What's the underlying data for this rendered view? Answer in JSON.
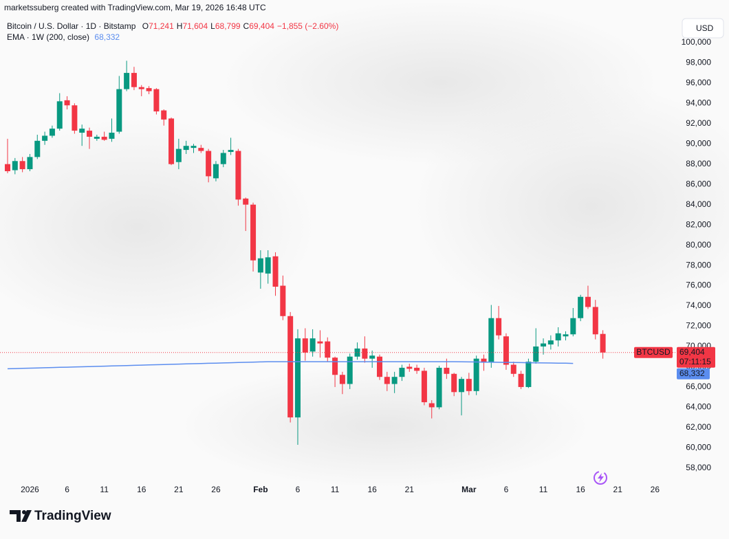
{
  "header": {
    "attribution": "marketssuberg created with TradingView.com, Mar 19, 2026 16:48 UTC"
  },
  "chart_data": {
    "type": "candlestick",
    "title": "Bitcoin / U.S. Dollar · 1D · Bitstamp",
    "legend": [
      {
        "key": "O",
        "value": "71,241"
      },
      {
        "key": "H",
        "value": "71,604"
      },
      {
        "key": "L",
        "value": "68,799"
      },
      {
        "key": "C",
        "value": "69,404"
      }
    ],
    "change": "−1,855 (−2.60%)",
    "currency": "USD",
    "categories": [
      null,
      null,
      null,
      "2026",
      null,
      null,
      null,
      null,
      "6",
      null,
      null,
      null,
      null,
      "11",
      null,
      null,
      null,
      null,
      "16",
      null,
      null,
      null,
      null,
      "21",
      null,
      null,
      null,
      null,
      "26",
      null,
      null,
      null,
      null,
      null,
      "Feb",
      null,
      null,
      null,
      null,
      "6",
      null,
      null,
      null,
      null,
      "11",
      null,
      null,
      null,
      null,
      "16",
      null,
      null,
      null,
      null,
      "21",
      null,
      null,
      null,
      null,
      null,
      null,
      null,
      "Mar",
      null,
      null,
      null,
      null,
      "6",
      null,
      null,
      null,
      null,
      "11",
      null,
      null,
      null,
      null,
      "16",
      null,
      null,
      null,
      null,
      "21",
      null,
      null,
      null,
      null,
      "26",
      null,
      null
    ],
    "open": [
      88000,
      87400,
      88300,
      87500,
      88700,
      90300,
      90800,
      91500,
      94300,
      93800,
      91100,
      91300,
      90500,
      90700,
      90500,
      91200,
      95400,
      97000,
      95600,
      95500,
      95400,
      93300,
      92500,
      88200,
      89400,
      89600,
      89600,
      89300,
      86600,
      88000,
      89200,
      89300,
      84600,
      84000,
      77300,
      77200,
      78900,
      76000,
      73000,
      63000,
      70800,
      69500,
      70500,
      70500,
      68900,
      67200,
      66300,
      69000,
      69800,
      68800,
      69000,
      67000,
      66300,
      67000,
      68000,
      67900,
      67600,
      64400,
      64000,
      67900,
      67300,
      65500,
      66800,
      65600,
      68800,
      68400,
      72800,
      71000,
      68200,
      67300,
      66000,
      68500,
      70000,
      70200,
      70600,
      71000,
      71200,
      72800,
      74900,
      73900,
      71241,
      null,
      null,
      null,
      null,
      null,
      null,
      null,
      null,
      null
    ],
    "high": [
      90500,
      88600,
      88700,
      89000,
      90900,
      91200,
      91800,
      95000,
      94700,
      94000,
      91900,
      91600,
      90900,
      91200,
      92500,
      96700,
      98200,
      97600,
      95800,
      95700,
      95500,
      93400,
      92600,
      90500,
      90300,
      90000,
      89900,
      89500,
      88300,
      89400,
      90600,
      89500,
      84700,
      84200,
      79500,
      79500,
      79300,
      77000,
      73400,
      71700,
      71800,
      71700,
      71600,
      70900,
      69000,
      67500,
      69300,
      70400,
      71000,
      69600,
      69200,
      67500,
      67500,
      68200,
      68300,
      68200,
      67900,
      64700,
      68100,
      68800,
      67400,
      67000,
      67400,
      69100,
      69200,
      74100,
      74000,
      71300,
      68500,
      67600,
      68800,
      71800,
      70800,
      71100,
      71900,
      71500,
      73800,
      75100,
      76000,
      74600,
      71604,
      null,
      null,
      null,
      null,
      null,
      null,
      null,
      null,
      null
    ],
    "low": [
      87100,
      87000,
      87200,
      87300,
      88500,
      89900,
      90600,
      91300,
      93400,
      91000,
      89800,
      89500,
      90300,
      90300,
      90200,
      91000,
      95200,
      95300,
      94700,
      94900,
      92900,
      91800,
      87900,
      87500,
      89000,
      89100,
      89100,
      86200,
      86300,
      87700,
      88900,
      83900,
      81400,
      77400,
      75700,
      76200,
      75000,
      72600,
      62500,
      60300,
      68600,
      69000,
      68900,
      68500,
      66000,
      65300,
      65800,
      68700,
      68400,
      67900,
      66700,
      65600,
      65400,
      66600,
      67500,
      67300,
      64200,
      62900,
      63800,
      66800,
      65100,
      63200,
      65200,
      65200,
      67600,
      67900,
      70700,
      67700,
      67000,
      65800,
      65900,
      68300,
      69200,
      69700,
      70000,
      70600,
      71000,
      72500,
      73700,
      70700,
      68799,
      null,
      null,
      null,
      null,
      null,
      null,
      null,
      null,
      null
    ],
    "close": [
      87300,
      88300,
      87500,
      88700,
      90300,
      90800,
      91500,
      94200,
      93800,
      91300,
      91500,
      90700,
      90700,
      90400,
      91100,
      95400,
      97000,
      95600,
      95400,
      95200,
      93200,
      92400,
      88000,
      89500,
      89800,
      89800,
      89300,
      86800,
      88000,
      89100,
      89400,
      84500,
      84000,
      78500,
      78700,
      78800,
      75900,
      73000,
      63000,
      70800,
      69400,
      70800,
      70300,
      68900,
      67200,
      66300,
      69000,
      69800,
      68800,
      69100,
      67000,
      66300,
      67000,
      67900,
      67800,
      67600,
      64500,
      64000,
      67900,
      67300,
      65500,
      66800,
      65600,
      68800,
      68400,
      72800,
      71100,
      68200,
      67300,
      66000,
      68500,
      70000,
      70300,
      70600,
      71300,
      71200,
      72800,
      74900,
      73900,
      71200,
      69404,
      null,
      null,
      null,
      null,
      null,
      null,
      null,
      null,
      null
    ],
    "up_color": "#089981",
    "down_color": "#f23645",
    "overlay": {
      "name": "EMA · 1W (200, close)",
      "color": "#5b8def",
      "value_label": "68,332",
      "values": [
        67800,
        67820,
        67840,
        67860,
        67880,
        67900,
        67920,
        67940,
        67960,
        67980,
        68000,
        68020,
        68040,
        68060,
        68080,
        68100,
        68120,
        68140,
        68160,
        68180,
        68200,
        68220,
        68240,
        68260,
        68280,
        68300,
        68320,
        68340,
        68360,
        68380,
        68400,
        68420,
        68440,
        68460,
        68480,
        68500,
        68500,
        68500,
        68500,
        68500,
        68500,
        68500,
        68500,
        68500,
        68500,
        68500,
        68500,
        68500,
        68500,
        68500,
        68500,
        68500,
        68500,
        68500,
        68500,
        68500,
        68500,
        68500,
        68500,
        68500,
        68500,
        68490,
        68480,
        68470,
        68460,
        68450,
        68440,
        68430,
        68420,
        68410,
        68400,
        68390,
        68380,
        68370,
        68360,
        68350,
        68332,
        null,
        null,
        null,
        null,
        null,
        null,
        null,
        null,
        null,
        null,
        null,
        null,
        null
      ]
    },
    "price_tag": {
      "symbol": "BTCUSD",
      "price": "69,404",
      "countdown": "07:11:15"
    },
    "ylim": [
      56700,
      102500
    ],
    "yticks": [
      {
        "value": 58000,
        "label": "58,000"
      },
      {
        "value": 60000,
        "label": "60,000"
      },
      {
        "value": 62000,
        "label": "62,000"
      },
      {
        "value": 64000,
        "label": "64,000"
      },
      {
        "value": 66000,
        "label": "66,000"
      },
      {
        "value": 68000,
        "label": "68,000"
      },
      {
        "value": 70000,
        "label": "70,000"
      },
      {
        "value": 72000,
        "label": "72,000"
      },
      {
        "value": 74000,
        "label": "74,000"
      },
      {
        "value": 76000,
        "label": "76,000"
      },
      {
        "value": 78000,
        "label": "78,000"
      },
      {
        "value": 80000,
        "label": "80,000"
      },
      {
        "value": 82000,
        "label": "82,000"
      },
      {
        "value": 84000,
        "label": "84,000"
      },
      {
        "value": 86000,
        "label": "86,000"
      },
      {
        "value": 88000,
        "label": "88,000"
      },
      {
        "value": 90000,
        "label": "90,000"
      },
      {
        "value": 92000,
        "label": "92,000"
      },
      {
        "value": 94000,
        "label": "94,000"
      },
      {
        "value": 96000,
        "label": "96,000"
      },
      {
        "value": 98000,
        "label": "98,000"
      },
      {
        "value": 100000,
        "label": "100,000"
      }
    ],
    "grid": false
  },
  "footer": {
    "logo": "TradingView"
  }
}
